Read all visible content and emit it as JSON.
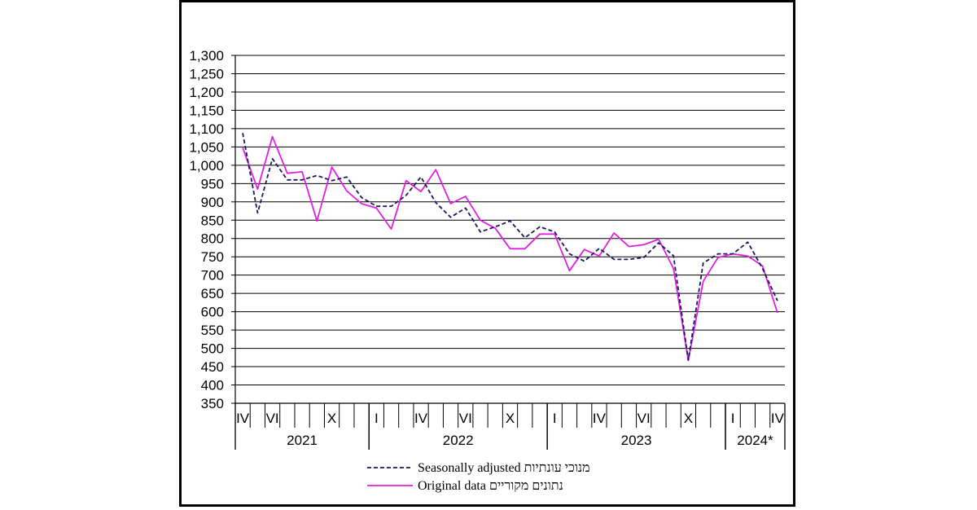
{
  "chart_data": {
    "type": "line",
    "yticks": [
      "350",
      "400",
      "450",
      "500",
      "550",
      "600",
      "650",
      "700",
      "750",
      "800",
      "850",
      "900",
      "950",
      "1,000",
      "1,050",
      "1,100",
      "1,150",
      "1,200",
      "1,250",
      "1,300"
    ],
    "ylim": [
      350,
      1300
    ],
    "month_labels": [
      {
        "index": 0,
        "text": "IV"
      },
      {
        "index": 2,
        "text": "VI"
      },
      {
        "index": 6,
        "text": "X"
      },
      {
        "index": 9,
        "text": "I"
      },
      {
        "index": 12,
        "text": "IV"
      },
      {
        "index": 15,
        "text": "VI"
      },
      {
        "index": 18,
        "text": "X"
      },
      {
        "index": 21,
        "text": "I"
      },
      {
        "index": 24,
        "text": "IV"
      },
      {
        "index": 27,
        "text": "VI"
      },
      {
        "index": 30,
        "text": "X"
      },
      {
        "index": 33,
        "text": "I"
      },
      {
        "index": 36,
        "text": "IV"
      }
    ],
    "years": [
      {
        "label": "2021",
        "start": 0,
        "end": 9
      },
      {
        "label": "2022",
        "start": 9,
        "end": 21
      },
      {
        "label": "2023",
        "start": 21,
        "end": 33
      },
      {
        "label": "2024*",
        "start": 33,
        "end": 37
      }
    ],
    "series": [
      {
        "name": "Seasonally adjusted מנוכי עונתיות",
        "color": "#1a1a5e",
        "dash": true,
        "values": [
          1088,
          870,
          1018,
          960,
          960,
          972,
          958,
          968,
          912,
          888,
          888,
          918,
          968,
          898,
          858,
          883,
          818,
          832,
          848,
          802,
          832,
          818,
          758,
          738,
          773,
          743,
          743,
          748,
          788,
          753,
          468,
          733,
          758,
          758,
          790,
          718,
          630
        ]
      },
      {
        "name": "Original data נתונים מקוריים",
        "color": "#e020e0",
        "dash": false,
        "values": [
          1048,
          935,
          1078,
          978,
          982,
          848,
          995,
          930,
          895,
          883,
          826,
          958,
          928,
          988,
          895,
          915,
          850,
          828,
          772,
          772,
          812,
          812,
          712,
          770,
          752,
          815,
          778,
          783,
          798,
          718,
          467,
          683,
          748,
          758,
          752,
          725,
          597
        ]
      }
    ],
    "legend": [
      {
        "text": "Seasonally adjusted מנוכי עונתיות",
        "style": "dashed",
        "color": "#1a1a5e"
      },
      {
        "text": "Original data נתונים מקוריים",
        "style": "solid",
        "color": "#e020e0"
      }
    ]
  }
}
